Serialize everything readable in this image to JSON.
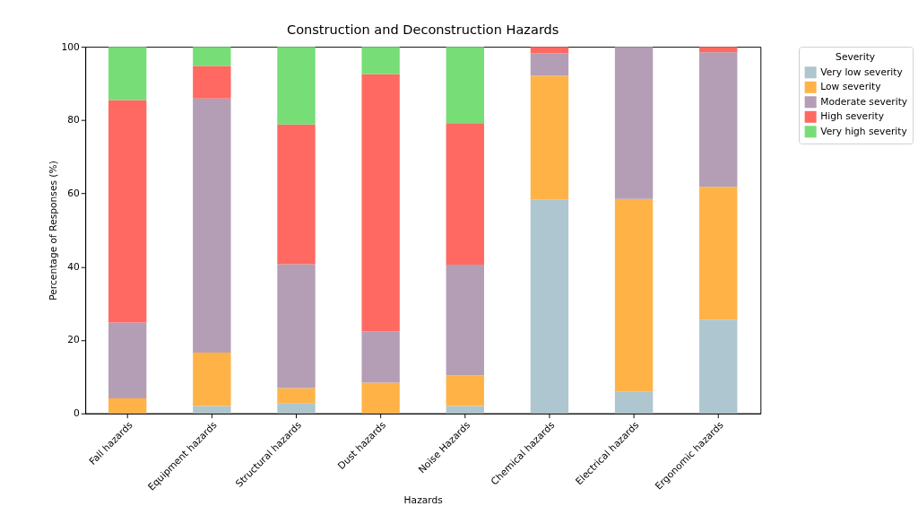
{
  "chart_data": {
    "type": "bar",
    "stacked": true,
    "title": "Construction and Deconstruction Hazards",
    "xlabel": "Hazards",
    "ylabel": "Percentage of Responses (%)",
    "legend_title": "Severity",
    "legend": "top right",
    "categories": [
      "Fall hazards",
      "Equipment hazards",
      "Structural hazards",
      "Dust hazards",
      "Noise Hazards",
      "Chemical hazards",
      "Electrical hazards",
      "Ergonomic hazards"
    ],
    "series": [
      {
        "name": "Very low severity",
        "color": "#aec6cf",
        "values": [
          0,
          2.0,
          2.8,
          0,
          2.0,
          58.4,
          5.9,
          25.6
        ]
      },
      {
        "name": "Low severity",
        "color": "#ffb347",
        "values": [
          4.1,
          14.6,
          4.1,
          8.4,
          8.4,
          33.7,
          52.6,
          36.2
        ]
      },
      {
        "name": "Moderate severity",
        "color": "#b39eb5",
        "values": [
          20.7,
          69.3,
          33.8,
          14.0,
          30.2,
          6.1,
          41.5,
          36.7
        ]
      },
      {
        "name": "High severity",
        "color": "#ff6961",
        "values": [
          60.7,
          8.9,
          38.1,
          70.1,
          38.6,
          1.8,
          0,
          1.5
        ]
      },
      {
        "name": "Very high severity",
        "color": "#77dd77",
        "values": [
          14.5,
          5.2,
          21.2,
          7.5,
          20.8,
          0,
          0,
          0
        ]
      }
    ],
    "ylim": [
      0,
      100
    ],
    "yticks": [
      0,
      20,
      40,
      60,
      80,
      100
    ],
    "grid": false
  }
}
